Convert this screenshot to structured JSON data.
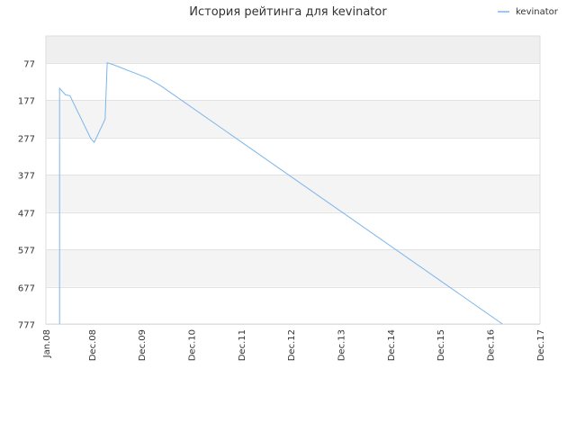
{
  "chart_data": {
    "type": "line",
    "title": "История рейтинга для kevinator",
    "xlabel": "",
    "ylabel": "",
    "legend": {
      "placement": "top-right",
      "entries": [
        "kevinator"
      ]
    },
    "grid": true,
    "y_axis": {
      "inverted": true,
      "ylim": [
        777,
        5
      ],
      "ticks": [
        77,
        177,
        277,
        377,
        477,
        577,
        677,
        777
      ]
    },
    "x_axis": {
      "xlim": [
        "2008-01-01",
        "2017-12-01"
      ],
      "ticks": [
        {
          "date": "2008-01-01",
          "label": "Jan.08"
        },
        {
          "date": "2008-12-01",
          "label": "Dec.08"
        },
        {
          "date": "2009-12-01",
          "label": "Dec.09"
        },
        {
          "date": "2010-12-01",
          "label": "Dec.10"
        },
        {
          "date": "2011-12-01",
          "label": "Dec.11"
        },
        {
          "date": "2012-12-01",
          "label": "Dec.12"
        },
        {
          "date": "2013-12-01",
          "label": "Dec.13"
        },
        {
          "date": "2014-12-01",
          "label": "Dec.14"
        },
        {
          "date": "2015-12-01",
          "label": "Dec.15"
        },
        {
          "date": "2016-12-01",
          "label": "Dec.16"
        },
        {
          "date": "2017-12-01",
          "label": "Dec.17"
        }
      ]
    },
    "series": [
      {
        "name": "kevinator",
        "color": "#7cb5ec",
        "points": [
          {
            "x": "2008-04-10",
            "y": 777
          },
          {
            "x": "2008-04-10",
            "y": 145
          },
          {
            "x": "2008-05-25",
            "y": 163
          },
          {
            "x": "2008-06-25",
            "y": 165
          },
          {
            "x": "2008-11-25",
            "y": 280
          },
          {
            "x": "2008-12-20",
            "y": 290
          },
          {
            "x": "2009-03-10",
            "y": 228
          },
          {
            "x": "2009-03-25",
            "y": 77
          },
          {
            "x": "2009-05-10",
            "y": 82
          },
          {
            "x": "2010-01-10",
            "y": 117
          },
          {
            "x": "2010-04-20",
            "y": 138
          },
          {
            "x": "2017-03-01",
            "y": 777
          }
        ]
      }
    ]
  }
}
